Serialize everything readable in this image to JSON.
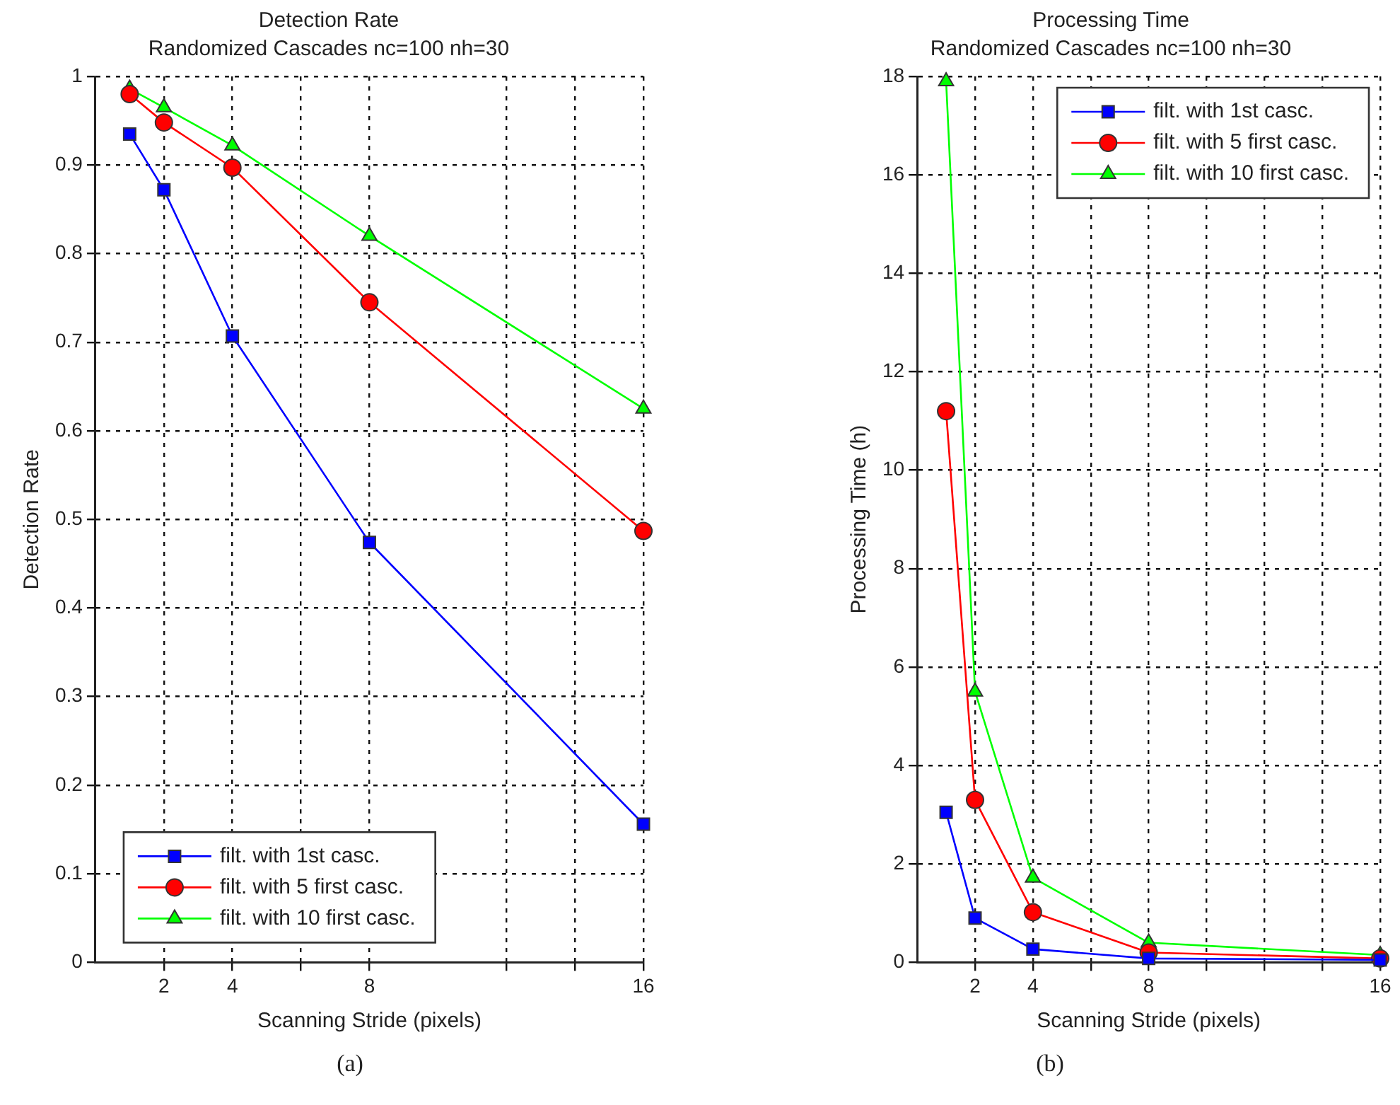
{
  "chart_data": [
    {
      "type": "line",
      "title": "Detection Rate",
      "subtitle": "Randomized Cascades nc=100 nh=30",
      "xlabel": "Scanning Stride (pixels)",
      "ylabel": "Detection Rate",
      "x": [
        1,
        2,
        4,
        8,
        16
      ],
      "series": [
        {
          "name": "filt. with 1st casc.",
          "color": "#0000ff",
          "marker": "square",
          "values": [
            0.935,
            0.872,
            0.707,
            0.474,
            0.156
          ]
        },
        {
          "name": "filt. with 5 first casc.",
          "color": "#ff0000",
          "marker": "circle",
          "values": [
            0.98,
            0.948,
            0.897,
            0.745,
            0.487
          ]
        },
        {
          "name": "filt. with 10 first casc.",
          "color": "#00ff00",
          "marker": "triangle",
          "values": [
            0.986,
            0.965,
            0.922,
            0.82,
            0.625
          ]
        }
      ],
      "xlim": [
        0,
        16
      ],
      "xticks": [
        {
          "value": 2,
          "label": "2"
        },
        {
          "value": 4,
          "label": "4"
        },
        {
          "value": 6,
          "label": null
        },
        {
          "value": 8,
          "label": "8"
        },
        {
          "value": 12,
          "label": null
        },
        {
          "value": 14,
          "label": null
        },
        {
          "value": 16,
          "label": "16"
        }
      ],
      "ylim": [
        0,
        1
      ],
      "yticks": [
        0,
        0.1,
        0.2,
        0.3,
        0.4,
        0.5,
        0.6,
        0.7,
        0.8,
        0.9,
        1
      ],
      "grid": true,
      "legend": "bottom",
      "annotations": [
        "(a)"
      ]
    },
    {
      "type": "line",
      "title": "Processing Time",
      "subtitle": "Randomized Cascades nc=100 nh=30",
      "xlabel": "Scanning Stride (pixels)",
      "ylabel": "Processing Time (h)",
      "x": [
        1,
        2,
        4,
        8,
        16
      ],
      "series": [
        {
          "name": "filt. with 1st casc.",
          "color": "#0000ff",
          "marker": "square",
          "values": [
            3.05,
            0.9,
            0.27,
            0.08,
            0.05
          ]
        },
        {
          "name": "filt. with 5 first casc.",
          "color": "#ff0000",
          "marker": "circle",
          "values": [
            11.2,
            3.3,
            1.02,
            0.2,
            0.08
          ]
        },
        {
          "name": "filt. with 10 first casc.",
          "color": "#00ff00",
          "marker": "triangle",
          "values": [
            17.9,
            5.5,
            1.72,
            0.4,
            0.15
          ]
        }
      ],
      "xlim": [
        0,
        16
      ],
      "xticks": [
        {
          "value": 2,
          "label": "2"
        },
        {
          "value": 4,
          "label": "4"
        },
        {
          "value": 6,
          "label": null
        },
        {
          "value": 8,
          "label": "8"
        },
        {
          "value": 10,
          "label": null
        },
        {
          "value": 12,
          "label": null
        },
        {
          "value": 14,
          "label": null
        },
        {
          "value": 16,
          "label": "16"
        }
      ],
      "ylim": [
        0,
        18
      ],
      "yticks": [
        0,
        2,
        4,
        6,
        8,
        10,
        12,
        14,
        16,
        18
      ],
      "grid": true,
      "legend": "top right",
      "annotations": [
        "(b)"
      ]
    }
  ]
}
